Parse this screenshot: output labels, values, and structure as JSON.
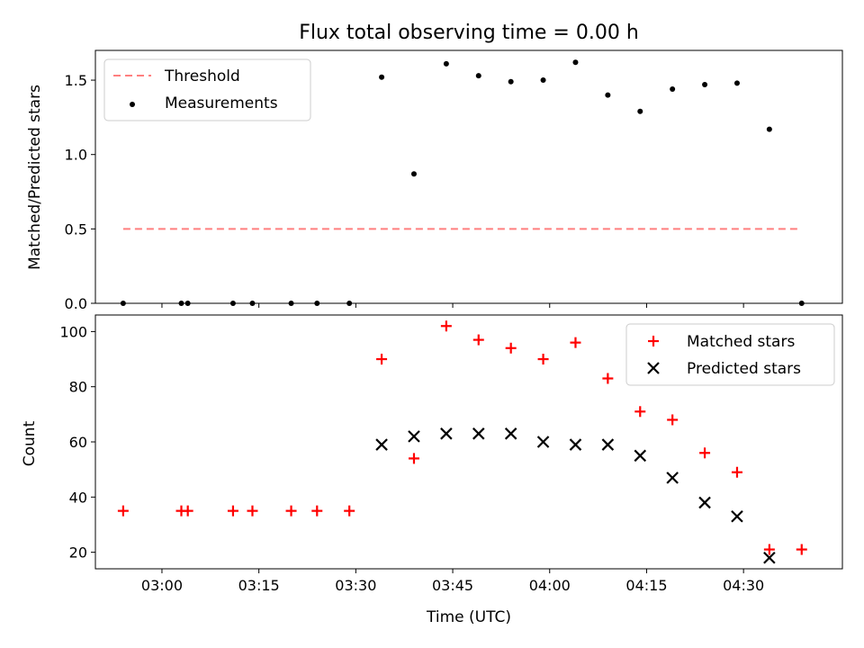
{
  "title": "Flux total observing time = 0.00 h",
  "colors": {
    "measurement": "#000000",
    "threshold": "#ff7f7f",
    "matched": "#ff0000",
    "predicted": "#000000"
  },
  "xaxis": {
    "label": "Time (UTC)",
    "ticks": [
      "03:00",
      "03:15",
      "03:30",
      "03:45",
      "04:00",
      "04:15",
      "04:30"
    ],
    "range_min": [
      -10.3,
      105.3
    ]
  },
  "chart_data": [
    {
      "type": "scatter",
      "title": "Flux total observing time = 0.00 h",
      "xlabel": "Time (UTC)",
      "ylabel": "Matched/Predicted stars",
      "ylim": [
        0,
        1.7
      ],
      "yticks": [
        "0.0",
        "0.5",
        "1.0",
        "1.5"
      ],
      "grid": false,
      "legend": "upper left",
      "threshold": {
        "name": "Threshold",
        "style": "dashed",
        "value": 0.5,
        "x_range": [
          "02:54",
          "04:39"
        ]
      },
      "series": [
        {
          "name": "Measurements",
          "x": [
            "02:54",
            "03:03",
            "03:04",
            "03:11",
            "03:14",
            "03:20",
            "03:24",
            "03:29",
            "03:34",
            "03:39",
            "03:44",
            "03:49",
            "03:54",
            "03:59",
            "04:04",
            "04:09",
            "04:14",
            "04:19",
            "04:24",
            "04:29",
            "04:34",
            "04:39"
          ],
          "values": [
            0,
            0,
            0,
            0,
            0,
            0,
            0,
            0,
            1.52,
            0.87,
            1.61,
            1.53,
            1.49,
            1.5,
            1.62,
            1.4,
            1.29,
            1.44,
            1.47,
            1.48,
            1.17,
            0
          ]
        }
      ]
    },
    {
      "type": "scatter",
      "xlabel": "Time (UTC)",
      "ylabel": "Count",
      "ylim": [
        14,
        106
      ],
      "yticks": [
        "20",
        "40",
        "60",
        "80",
        "100"
      ],
      "grid": false,
      "legend": "upper right",
      "series": [
        {
          "name": "Matched stars",
          "marker": "+",
          "x": [
            "02:54",
            "03:03",
            "03:04",
            "03:11",
            "03:14",
            "03:20",
            "03:24",
            "03:29",
            "03:34",
            "03:39",
            "03:44",
            "03:49",
            "03:54",
            "03:59",
            "04:04",
            "04:09",
            "04:14",
            "04:19",
            "04:24",
            "04:29",
            "04:34",
            "04:39"
          ],
          "values": [
            35,
            35,
            35,
            35,
            35,
            35,
            35,
            35,
            90,
            54,
            102,
            97,
            94,
            90,
            96,
            83,
            71,
            68,
            56,
            49,
            21,
            21
          ]
        },
        {
          "name": "Predicted stars",
          "marker": "x",
          "x": [
            "03:34",
            "03:39",
            "03:44",
            "03:49",
            "03:54",
            "03:59",
            "04:04",
            "04:09",
            "04:14",
            "04:19",
            "04:24",
            "04:29",
            "04:34"
          ],
          "values": [
            59,
            62,
            63,
            63,
            63,
            60,
            59,
            59,
            55,
            47,
            38,
            33,
            18
          ]
        }
      ]
    }
  ]
}
